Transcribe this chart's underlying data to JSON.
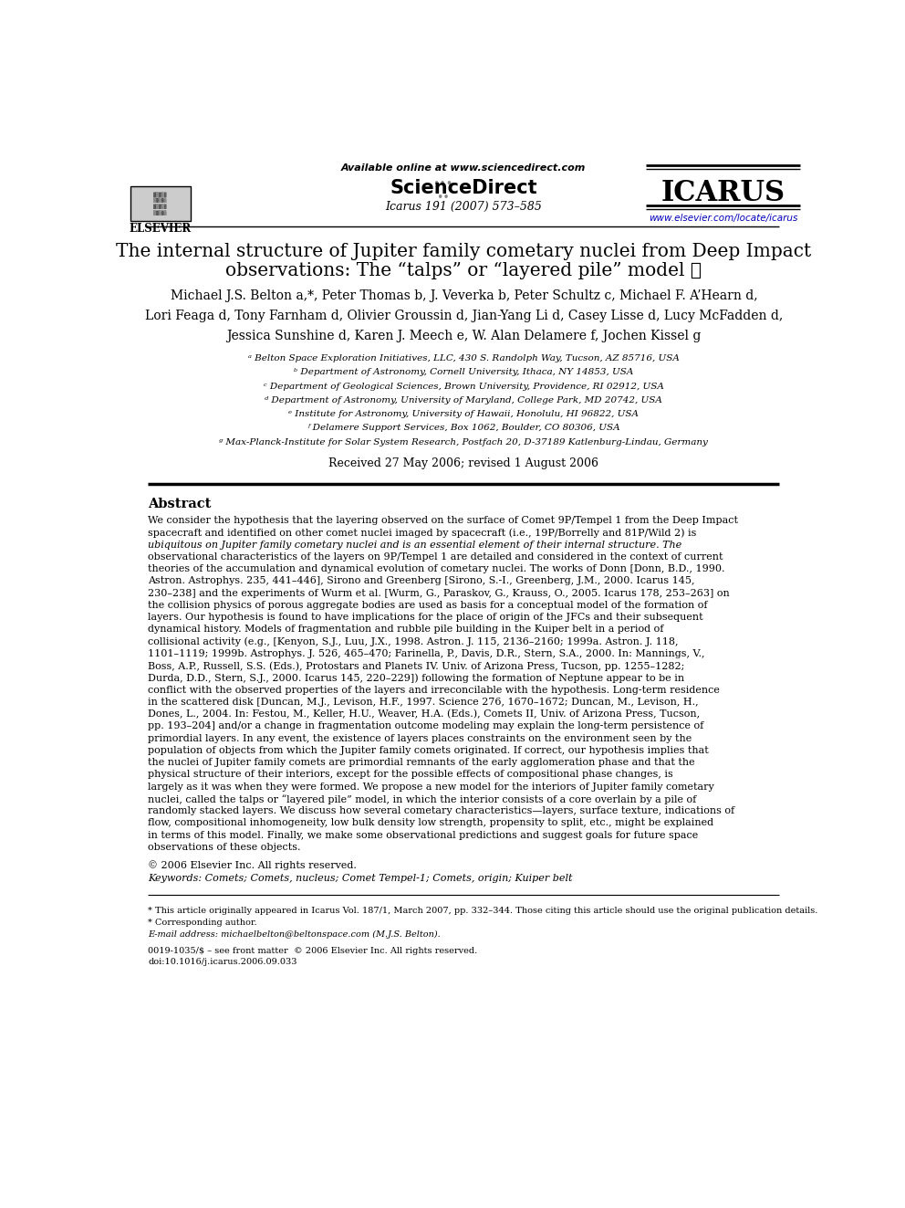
{
  "bg_color": "#ffffff",
  "title_line1": "The internal structure of Jupiter family cometary nuclei from Deep Impact",
  "title_line2": "observations: The “talps” or “layered pile” model ☆",
  "authors_line1": "Michael J.S. Belton a,*, Peter Thomas b, J. Veverka b, Peter Schultz c, Michael F. A’Hearn d,",
  "authors_line2": "Lori Feaga d, Tony Farnham d, Olivier Groussin d, Jian-Yang Li d, Casey Lisse d, Lucy McFadden d,",
  "authors_line3": "Jessica Sunshine d, Karen J. Meech e, W. Alan Delamere f, Jochen Kissel g",
  "affiliations": [
    "ᵃ Belton Space Exploration Initiatives, LLC, 430 S. Randolph Way, Tucson, AZ 85716, USA",
    "ᵇ Department of Astronomy, Cornell University, Ithaca, NY 14853, USA",
    "ᶜ Department of Geological Sciences, Brown University, Providence, RI 02912, USA",
    "ᵈ Department of Astronomy, University of Maryland, College Park, MD 20742, USA",
    "ᵉ Institute for Astronomy, University of Hawaii, Honolulu, HI 96822, USA",
    "ᶠ Delamere Support Services, Box 1062, Boulder, CO 80306, USA",
    "ᵍ Max-Planck-Institute for Solar System Research, Postfach 20, D-37189 Katlenburg-Lindau, Germany"
  ],
  "received": "Received 27 May 2006; revised 1 August 2006",
  "journal_name": "ICARUS",
  "journal_info": "Icarus 191 (2007) 573–585",
  "journal_url": "www.elsevier.com/locate/icarus",
  "sciencedirect_text": "Available online at www.sciencedirect.com",
  "publisher": "ELSEVIER",
  "abstract_title": "Abstract",
  "abstract_text": "We consider the hypothesis that the layering observed on the surface of Comet 9P/Tempel 1 from the Deep Impact spacecraft and identified on other comet nuclei imaged by spacecraft (i.e., 19P/Borrelly and 81P/Wild 2) is ubiquitous on Jupiter family cometary nuclei and is an essential element of their internal structure. The observational characteristics of the layers on 9P/Tempel 1 are detailed and considered in the context of current theories of the accumulation and dynamical evolution of cometary nuclei. The works of Donn [Donn, B.D., 1990. Astron. Astrophys. 235, 441–446], Sirono and Greenberg [Sirono, S.-I., Greenberg, J.M., 2000. Icarus 145, 230–238] and the experiments of Wurm et al. [Wurm, G., Paraskov, G., Krauss, O., 2005. Icarus 178, 253–263] on the collision physics of porous aggregate bodies are used as basis for a conceptual model of the formation of layers. Our hypothesis is found to have implications for the place of origin of the JFCs and their subsequent dynamical history. Models of fragmentation and rubble pile building in the Kuiper belt in a period of collisional activity (e.g., [Kenyon, S.J., Luu, J.X., 1998. Astron. J. 115, 2136–2160; 1999a. Astron. J. 118, 1101–1119; 1999b. Astrophys. J. 526, 465–470; Farinella, P., Davis, D.R., Stern, S.A., 2000. In: Mannings, V., Boss, A.P., Russell, S.S. (Eds.), Protostars and Planets IV. Univ. of Arizona Press, Tucson, pp. 1255–1282; Durda, D.D., Stern, S.J., 2000. Icarus 145, 220–229]) following the formation of Neptune appear to be in conflict with the observed properties of the layers and irreconcilable with the hypothesis. Long-term residence in the scattered disk [Duncan, M.J., Levison, H.F., 1997. Science 276, 1670–1672; Duncan, M., Levison, H., Dones, L., 2004. In: Festou, M., Keller, H.U., Weaver, H.A. (Eds.), Comets II, Univ. of Arizona Press, Tucson, pp. 193–204] and/or a change in fragmentation outcome modeling may explain the long-term persistence of primordial layers. In any event, the existence of layers places constraints on the environment seen by the population of objects from which the Jupiter family comets originated. If correct, our hypothesis implies that the nuclei of Jupiter family comets are primordial remnants of the early agglomeration phase and that the physical structure of their interiors, except for the possible effects of compositional phase changes, is largely as it was when they were formed. We propose a new model for the interiors of Jupiter family cometary nuclei, called the talps or “layered pile” model, in which the interior consists of a core overlain by a pile of randomly stacked layers. We discuss how several cometary characteristics—layers, surface texture, indications of flow, compositional inhomogeneity, low bulk density low strength, propensity to split, etc., might be explained in terms of this model. Finally, we make some observational predictions and suggest goals for future space observations of these objects.",
  "copyright": "© 2006 Elsevier Inc. All rights reserved.",
  "keywords": "Keywords: Comets; Comets, nucleus; Comet Tempel-1; Comets, origin; Kuiper belt",
  "footnote1": "* This article originally appeared in Icarus Vol. 187/1, March 2007, pp. 332–344. Those citing this article should use the original publication details.",
  "footnote2": "* Corresponding author.",
  "footnote3": "E-mail address: michaelbelton@beltonspace.com (M.J.S. Belton).",
  "doi": "0019-1035/$ – see front matter  © 2006 Elsevier Inc. All rights reserved.",
  "doi2": "doi:10.1016/j.icarus.2006.09.033"
}
